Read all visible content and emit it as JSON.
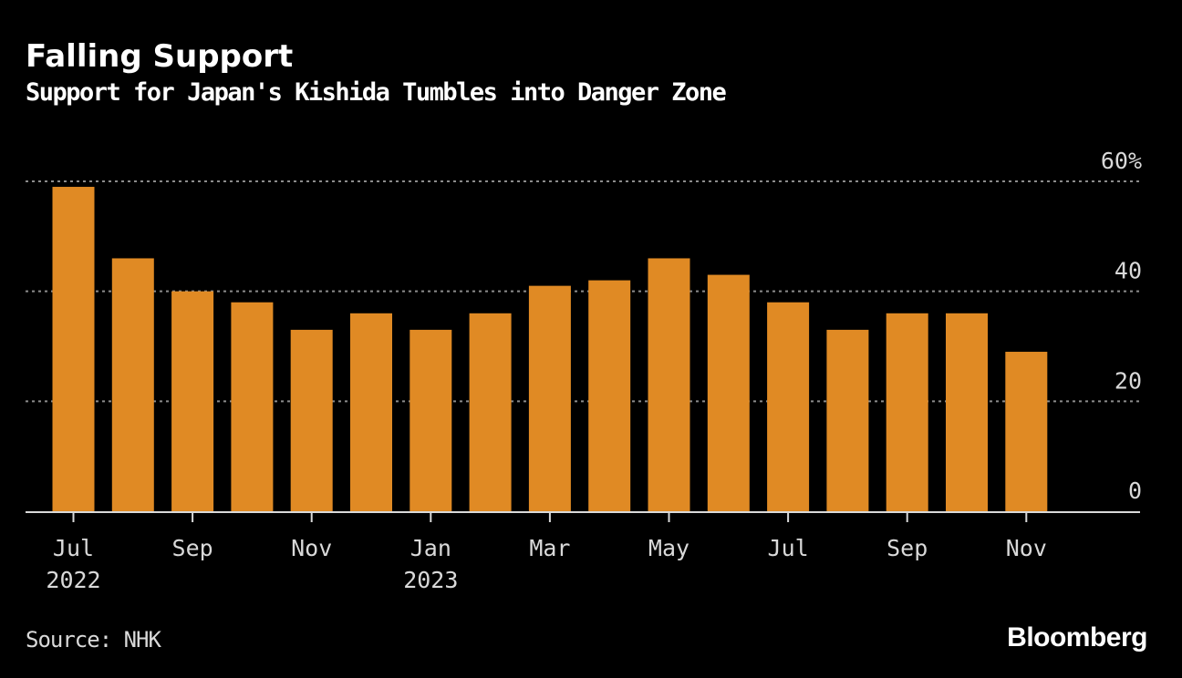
{
  "header": {
    "title": "Falling Support",
    "subtitle": "Support for Japan's Kishida Tumbles into Danger Zone"
  },
  "footer": {
    "source": "Source: NHK",
    "brand": "Bloomberg"
  },
  "colors": {
    "background": "#000000",
    "bar": "#e08a24",
    "grid": "#8c8c8c",
    "axis": "#d9d9d9"
  },
  "chart_data": {
    "type": "bar",
    "title": "Falling Support",
    "subtitle": "Support for Japan's Kishida Tumbles into Danger Zone",
    "xlabel": "",
    "ylabel": "",
    "categories": [
      "Jul 2022",
      "Aug 2022",
      "Sep 2022",
      "Oct 2022",
      "Nov 2022",
      "Dec 2022",
      "Jan 2023",
      "Feb 2023",
      "Mar 2023",
      "Apr 2023",
      "May 2023",
      "Jun 2023",
      "Jul 2023",
      "Aug 2023",
      "Sep 2023",
      "Oct 2023",
      "Nov 2023"
    ],
    "values": [
      59,
      46,
      40,
      38,
      33,
      36,
      33,
      36,
      41,
      42,
      46,
      43,
      38,
      33,
      36,
      36,
      29
    ],
    "ylim": [
      0,
      60
    ],
    "yticks": [
      {
        "value": 60,
        "label": "60%"
      },
      {
        "value": 40,
        "label": "40"
      },
      {
        "value": 20,
        "label": "20"
      },
      {
        "value": 0,
        "label": "0"
      }
    ],
    "xticks": [
      {
        "index": 0,
        "label": "Jul",
        "sublabel": "2022"
      },
      {
        "index": 2,
        "label": "Sep",
        "sublabel": ""
      },
      {
        "index": 4,
        "label": "Nov",
        "sublabel": ""
      },
      {
        "index": 6,
        "label": "Jan",
        "sublabel": "2023"
      },
      {
        "index": 8,
        "label": "Mar",
        "sublabel": ""
      },
      {
        "index": 10,
        "label": "May",
        "sublabel": ""
      },
      {
        "index": 12,
        "label": "Jul",
        "sublabel": ""
      },
      {
        "index": 14,
        "label": "Sep",
        "sublabel": ""
      },
      {
        "index": 16,
        "label": "Nov",
        "sublabel": ""
      }
    ],
    "grid": true,
    "axis_position": "right"
  }
}
